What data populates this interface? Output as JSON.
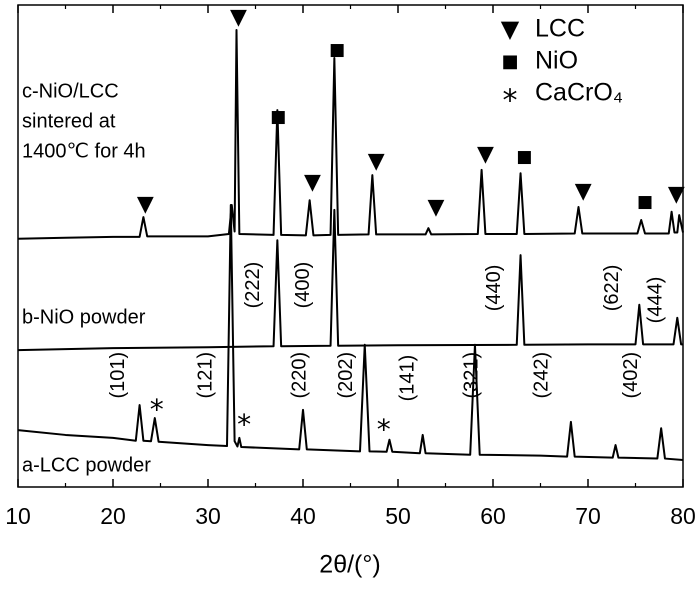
{
  "chart_data": {
    "type": "line",
    "x_label": "2θ/(°)",
    "xlim": [
      10,
      80
    ],
    "xticks": [
      10,
      20,
      30,
      40,
      50,
      60,
      70,
      80
    ],
    "xminorticks": [
      15,
      25,
      35,
      45,
      55,
      65,
      75
    ],
    "ylim": [
      0,
      100
    ],
    "series": [
      {
        "name": "c-NiO/LCC sintered at 1400℃ for 4h",
        "label_lines": [
          "c-NiO/LCC",
          "sintered at",
          "1400℃ for 4h"
        ],
        "color": "#000000",
        "x": [
          10,
          15,
          20,
          22.8,
          23.2,
          23.6,
          30,
          32.2,
          32.5,
          32.8,
          33.0,
          33.3,
          36.9,
          37.3,
          37.7,
          40.3,
          40.7,
          41.1,
          42.9,
          43.3,
          43.7,
          46.9,
          47.3,
          47.7,
          52.9,
          53.2,
          53.5,
          58.4,
          58.8,
          59.2,
          62.5,
          62.9,
          63.3,
          68.6,
          69.0,
          69.4,
          75.2,
          75.6,
          76.0,
          78.5,
          78.8,
          79.1,
          79.4,
          79.6,
          80
        ],
        "values": [
          51.5,
          51.7,
          51.9,
          51.9,
          56.0,
          52.0,
          52.0,
          52.5,
          58.5,
          53,
          94.8,
          52.5,
          52.3,
          78.2,
          52.3,
          52.2,
          59.5,
          52.2,
          52.3,
          89.0,
          52.3,
          52.4,
          64.7,
          52.4,
          52.4,
          53.7,
          52.4,
          52.5,
          65.8,
          52.5,
          52.5,
          65.1,
          52.5,
          52.6,
          58.1,
          52.6,
          52.6,
          55.4,
          52.6,
          52.6,
          57.1,
          52.8,
          52.8,
          56.4,
          52.8
        ]
      },
      {
        "name": "b-NiO powder",
        "label_lines": [
          "b-NiO powder"
        ],
        "color": "#000000",
        "x": [
          10,
          20,
          30,
          36.9,
          37.3,
          37.7,
          42.9,
          43.3,
          43.7,
          50,
          62.5,
          62.9,
          63.3,
          70,
          75.0,
          75.4,
          75.8,
          79.0,
          79.4,
          79.8,
          80
        ],
        "values": [
          28.4,
          28.8,
          29.0,
          29.2,
          51.2,
          29.2,
          29.3,
          57.5,
          29.3,
          29.4,
          29.5,
          48.1,
          29.5,
          29.6,
          29.6,
          37.8,
          29.6,
          29.6,
          35.1,
          29.6,
          29.6
        ]
      },
      {
        "name": "a-LCC powder",
        "label_lines": [
          "a-LCC powder"
        ],
        "color": "#000000",
        "x": [
          10,
          15,
          20,
          22.4,
          22.8,
          23.2,
          24.0,
          24.4,
          24.8,
          30,
          32.0,
          32.4,
          32.8,
          33.1,
          33.3,
          33.5,
          39.6,
          40.0,
          40.4,
          46.0,
          46.5,
          47.0,
          48.8,
          49.1,
          49.4,
          52.3,
          52.6,
          52.9,
          57.6,
          58.1,
          58.6,
          65,
          67.8,
          68.2,
          68.6,
          72.6,
          72.9,
          73.2,
          77.3,
          77.7,
          78.1,
          80
        ],
        "values": [
          11.8,
          10.8,
          10.2,
          9.6,
          17.0,
          9.6,
          9.5,
          14.3,
          9.4,
          8.7,
          8.5,
          58.5,
          9.5,
          8.4,
          10.2,
          8.3,
          7.8,
          16.0,
          7.8,
          7.4,
          29.5,
          7.4,
          7.3,
          9.8,
          7.3,
          7.0,
          10.8,
          7.0,
          6.7,
          29.5,
          6.7,
          6.5,
          6.3,
          13.5,
          6.3,
          6.1,
          8.7,
          6.1,
          5.9,
          12.2,
          5.9,
          5.6
        ]
      }
    ],
    "legend": [
      {
        "symbol": "▼",
        "label": "LCC"
      },
      {
        "symbol": "■",
        "label": "NiO"
      },
      {
        "symbol": "*",
        "label": "CaCrO₄"
      }
    ],
    "markers": [
      {
        "kind": 0,
        "x": 23.4,
        "y": 58.5
      },
      {
        "kind": 0,
        "x": 33.2,
        "y": 97.3
      },
      {
        "kind": 0,
        "x": 41.0,
        "y": 63.1
      },
      {
        "kind": 0,
        "x": 47.7,
        "y": 67.4
      },
      {
        "kind": 0,
        "x": 54.0,
        "y": 57.9
      },
      {
        "kind": 0,
        "x": 59.2,
        "y": 68.9
      },
      {
        "kind": 0,
        "x": 69.5,
        "y": 61.2
      },
      {
        "kind": 0,
        "x": 79.3,
        "y": 60.6
      },
      {
        "kind": 1,
        "x": 37.4,
        "y": 76.8
      },
      {
        "kind": 1,
        "x": 43.6,
        "y": 90.7
      },
      {
        "kind": 1,
        "x": 63.3,
        "y": 68.5
      },
      {
        "kind": 1,
        "x": 76.0,
        "y": 59.1
      },
      {
        "kind": 2,
        "x": 24.6,
        "y": 17.0
      },
      {
        "kind": 2,
        "x": 33.8,
        "y": 13.9
      },
      {
        "kind": 2,
        "x": 48.5,
        "y": 12.9
      }
    ],
    "hkl_labels": [
      {
        "text": "(222)",
        "x": 34.8,
        "y": 41.9
      },
      {
        "text": "(400)",
        "x": 40.1,
        "y": 41.9
      },
      {
        "text": "(440)",
        "x": 60.2,
        "y": 41.3
      },
      {
        "text": "(622)",
        "x": 72.6,
        "y": 41.3
      },
      {
        "text": "(444)",
        "x": 77.2,
        "y": 38.8
      },
      {
        "text": "(101)",
        "x": 20.6,
        "y": 23.2
      },
      {
        "text": "(121)",
        "x": 29.8,
        "y": 23.2
      },
      {
        "text": "(220)",
        "x": 39.7,
        "y": 23.2
      },
      {
        "text": "(202)",
        "x": 44.6,
        "y": 23.2
      },
      {
        "text": "(141)",
        "x": 51.1,
        "y": 22.6
      },
      {
        "text": "(321)",
        "x": 57.8,
        "y": 23.2
      },
      {
        "text": "(242)",
        "x": 65.2,
        "y": 23.2
      },
      {
        "text": "(402)",
        "x": 74.6,
        "y": 23.2
      }
    ]
  }
}
